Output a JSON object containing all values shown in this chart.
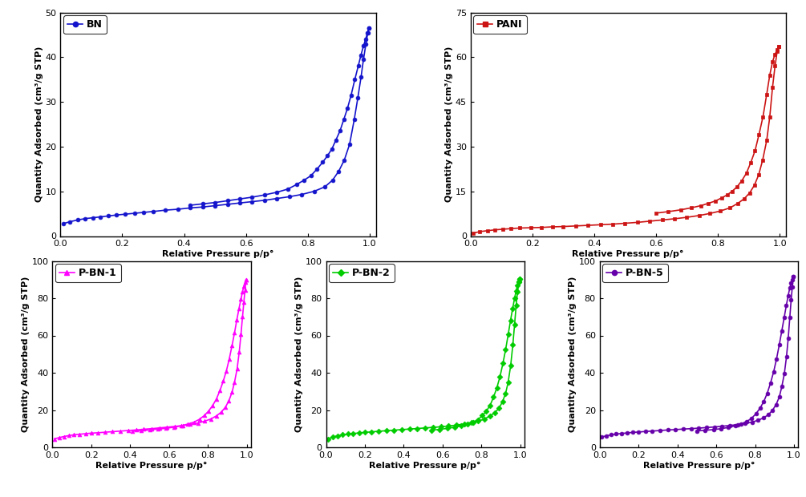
{
  "panels": [
    {
      "label": "BN",
      "color": "#1414CC",
      "marker": "o",
      "ylim": [
        0,
        50
      ],
      "yticks": [
        0,
        10,
        20,
        30,
        40,
        50
      ],
      "xlim": [
        0.0,
        1.02
      ],
      "xticks": [
        0.0,
        0.2,
        0.4,
        0.6,
        0.8,
        1.0
      ],
      "ylabel": "Quantity Adsorbed (cm³/g STP)",
      "xlabel": "Relative Pressure p/p°",
      "adsorption_x": [
        0.01,
        0.03,
        0.055,
        0.08,
        0.105,
        0.13,
        0.155,
        0.18,
        0.21,
        0.24,
        0.27,
        0.3,
        0.34,
        0.38,
        0.42,
        0.46,
        0.5,
        0.54,
        0.58,
        0.62,
        0.66,
        0.7,
        0.74,
        0.78,
        0.82,
        0.855,
        0.88,
        0.9,
        0.918,
        0.935,
        0.95,
        0.962,
        0.972,
        0.98,
        0.988,
        0.994,
        0.998
      ],
      "adsorption_y": [
        2.8,
        3.2,
        3.6,
        3.9,
        4.1,
        4.3,
        4.5,
        4.7,
        4.9,
        5.1,
        5.3,
        5.5,
        5.8,
        6.0,
        6.3,
        6.5,
        6.8,
        7.1,
        7.4,
        7.7,
        8.0,
        8.4,
        8.8,
        9.3,
        10.0,
        11.0,
        12.5,
        14.5,
        17.0,
        20.5,
        26.0,
        31.0,
        35.5,
        39.5,
        43.0,
        45.5,
        46.5
      ],
      "desorption_x": [
        0.998,
        0.993,
        0.987,
        0.98,
        0.972,
        0.963,
        0.952,
        0.94,
        0.928,
        0.916,
        0.904,
        0.891,
        0.878,
        0.864,
        0.848,
        0.83,
        0.81,
        0.788,
        0.763,
        0.735,
        0.7,
        0.66,
        0.62,
        0.58,
        0.54,
        0.5,
        0.46,
        0.42
      ],
      "desorption_y": [
        46.5,
        45.5,
        44.0,
        42.5,
        40.5,
        38.0,
        35.0,
        31.5,
        28.5,
        26.0,
        23.5,
        21.5,
        19.5,
        18.0,
        16.5,
        15.0,
        13.5,
        12.5,
        11.5,
        10.5,
        9.8,
        9.2,
        8.7,
        8.3,
        7.9,
        7.5,
        7.2,
        6.9
      ]
    },
    {
      "label": "PANI",
      "color": "#CC1414",
      "marker": "s",
      "ylim": [
        0,
        75
      ],
      "yticks": [
        0,
        15,
        30,
        45,
        60,
        75
      ],
      "xlim": [
        0.0,
        1.02
      ],
      "xticks": [
        0.0,
        0.2,
        0.4,
        0.6,
        0.8,
        1.0
      ],
      "ylabel": "Quantity Adsorbed (cm³/g STP)",
      "xlabel": "Relative Pressure p/p°",
      "adsorption_x": [
        0.01,
        0.03,
        0.055,
        0.08,
        0.105,
        0.13,
        0.16,
        0.195,
        0.23,
        0.265,
        0.3,
        0.34,
        0.38,
        0.42,
        0.46,
        0.5,
        0.54,
        0.58,
        0.62,
        0.66,
        0.7,
        0.74,
        0.775,
        0.808,
        0.84,
        0.865,
        0.885,
        0.903,
        0.918,
        0.932,
        0.945,
        0.958,
        0.968,
        0.977,
        0.985,
        0.992,
        0.997
      ],
      "adsorption_y": [
        1.0,
        1.5,
        1.8,
        2.1,
        2.3,
        2.5,
        2.7,
        2.8,
        2.9,
        3.1,
        3.2,
        3.4,
        3.6,
        3.8,
        4.0,
        4.3,
        4.6,
        5.0,
        5.4,
        5.8,
        6.3,
        6.9,
        7.6,
        8.4,
        9.5,
        11.0,
        12.5,
        14.5,
        17.0,
        20.5,
        25.5,
        32.0,
        40.0,
        50.0,
        57.0,
        62.0,
        63.5
      ],
      "desorption_x": [
        0.997,
        0.992,
        0.985,
        0.977,
        0.968,
        0.958,
        0.946,
        0.933,
        0.92,
        0.906,
        0.892,
        0.877,
        0.862,
        0.846,
        0.83,
        0.812,
        0.793,
        0.77,
        0.745,
        0.715,
        0.68,
        0.64,
        0.6
      ],
      "desorption_y": [
        63.5,
        62.5,
        61.0,
        58.5,
        54.0,
        47.5,
        40.0,
        34.0,
        28.5,
        24.5,
        21.0,
        18.5,
        16.5,
        15.0,
        13.8,
        12.8,
        11.8,
        11.0,
        10.2,
        9.5,
        8.8,
        8.2,
        7.7
      ]
    },
    {
      "label": "P-BN-1",
      "color": "#FF00FF",
      "marker": "^",
      "ylim": [
        0,
        100
      ],
      "yticks": [
        0,
        20,
        40,
        60,
        80,
        100
      ],
      "xlim": [
        0.0,
        1.02
      ],
      "xticks": [
        0.0,
        0.2,
        0.4,
        0.6,
        0.8,
        1.0
      ],
      "ylabel": "Quantity Adsorbed (cm³/g STP)",
      "xlabel": "Relative Pressure p/p°",
      "adsorption_x": [
        0.01,
        0.035,
        0.06,
        0.085,
        0.112,
        0.14,
        0.17,
        0.2,
        0.235,
        0.27,
        0.31,
        0.35,
        0.39,
        0.43,
        0.47,
        0.51,
        0.55,
        0.59,
        0.63,
        0.67,
        0.71,
        0.748,
        0.783,
        0.815,
        0.843,
        0.868,
        0.89,
        0.908,
        0.924,
        0.937,
        0.95,
        0.961,
        0.97,
        0.978,
        0.985,
        0.991,
        0.996
      ],
      "adsorption_y": [
        4.5,
        5.2,
        5.8,
        6.3,
        6.7,
        7.0,
        7.3,
        7.6,
        7.8,
        8.1,
        8.4,
        8.7,
        9.0,
        9.3,
        9.7,
        10.0,
        10.4,
        10.8,
        11.2,
        11.7,
        12.3,
        13.0,
        14.0,
        15.2,
        16.8,
        18.8,
        21.5,
        25.0,
        29.5,
        35.0,
        42.0,
        51.0,
        60.5,
        70.0,
        78.0,
        84.5,
        90.0
      ],
      "desorption_x": [
        0.996,
        0.991,
        0.985,
        0.978,
        0.97,
        0.96,
        0.949,
        0.937,
        0.924,
        0.91,
        0.895,
        0.879,
        0.862,
        0.844,
        0.825,
        0.804,
        0.781,
        0.756,
        0.728,
        0.697,
        0.663,
        0.625,
        0.585,
        0.543,
        0.5,
        0.455,
        0.41
      ],
      "desorption_y": [
        90.0,
        88.5,
        86.5,
        83.5,
        79.5,
        74.5,
        68.5,
        61.5,
        54.5,
        47.5,
        41.0,
        35.5,
        30.5,
        26.0,
        22.5,
        19.5,
        17.0,
        15.0,
        13.5,
        12.5,
        11.5,
        10.8,
        10.2,
        9.8,
        9.3,
        8.9,
        8.6
      ]
    },
    {
      "label": "P-BN-2",
      "color": "#00CC00",
      "marker": "D",
      "ylim": [
        0,
        100
      ],
      "yticks": [
        0,
        20,
        40,
        60,
        80,
        100
      ],
      "xlim": [
        0.0,
        1.02
      ],
      "xticks": [
        0.0,
        0.2,
        0.4,
        0.6,
        0.8,
        1.0
      ],
      "ylabel": "Quantity Adsorbed (cm³/g STP)",
      "xlabel": "Relative Pressure p/p°",
      "adsorption_x": [
        0.01,
        0.035,
        0.06,
        0.085,
        0.112,
        0.14,
        0.17,
        0.2,
        0.235,
        0.27,
        0.31,
        0.35,
        0.39,
        0.43,
        0.47,
        0.51,
        0.55,
        0.59,
        0.63,
        0.67,
        0.71,
        0.748,
        0.783,
        0.815,
        0.843,
        0.868,
        0.89,
        0.908,
        0.924,
        0.937,
        0.95,
        0.961,
        0.97,
        0.978,
        0.985,
        0.992,
        0.997
      ],
      "adsorption_y": [
        4.5,
        5.5,
        6.2,
        6.7,
        7.1,
        7.4,
        7.7,
        8.0,
        8.3,
        8.6,
        8.9,
        9.2,
        9.5,
        9.8,
        10.1,
        10.4,
        10.7,
        11.0,
        11.4,
        11.9,
        12.5,
        13.2,
        14.0,
        15.2,
        16.8,
        18.5,
        21.0,
        24.5,
        29.0,
        35.0,
        44.0,
        55.0,
        66.0,
        76.0,
        83.5,
        88.5,
        90.5
      ],
      "desorption_x": [
        0.997,
        0.992,
        0.985,
        0.978,
        0.97,
        0.96,
        0.949,
        0.937,
        0.924,
        0.91,
        0.895,
        0.879,
        0.862,
        0.844,
        0.825,
        0.804,
        0.781,
        0.756,
        0.728,
        0.697,
        0.663,
        0.625,
        0.585,
        0.543
      ],
      "desorption_y": [
        90.5,
        89.0,
        87.0,
        84.0,
        80.0,
        74.5,
        68.0,
        60.5,
        52.5,
        45.0,
        38.0,
        32.0,
        27.0,
        22.5,
        19.5,
        17.0,
        14.8,
        13.5,
        12.5,
        11.5,
        10.8,
        10.2,
        9.6,
        9.2
      ]
    },
    {
      "label": "P-BN-5",
      "color": "#6600AA",
      "marker": "o",
      "ylim": [
        0,
        100
      ],
      "yticks": [
        0,
        20,
        40,
        60,
        80,
        100
      ],
      "xlim": [
        0.0,
        1.02
      ],
      "xticks": [
        0.0,
        0.2,
        0.4,
        0.6,
        0.8,
        1.0
      ],
      "ylabel": "Quantity Adsorbed (cm³/g STP)",
      "xlabel": "Relative Pressure p/p°",
      "adsorption_x": [
        0.01,
        0.035,
        0.06,
        0.085,
        0.112,
        0.14,
        0.17,
        0.2,
        0.235,
        0.27,
        0.31,
        0.35,
        0.39,
        0.43,
        0.47,
        0.51,
        0.55,
        0.59,
        0.63,
        0.67,
        0.71,
        0.748,
        0.783,
        0.815,
        0.843,
        0.868,
        0.89,
        0.908,
        0.924,
        0.937,
        0.95,
        0.961,
        0.97,
        0.978,
        0.985,
        0.991,
        0.996
      ],
      "adsorption_y": [
        5.5,
        6.2,
        6.7,
        7.1,
        7.4,
        7.7,
        8.0,
        8.2,
        8.5,
        8.7,
        9.0,
        9.3,
        9.5,
        9.8,
        10.0,
        10.3,
        10.6,
        10.9,
        11.3,
        11.7,
        12.2,
        12.8,
        13.5,
        14.5,
        15.8,
        17.5,
        20.0,
        23.0,
        27.0,
        32.5,
        39.5,
        48.5,
        58.5,
        69.5,
        79.0,
        86.0,
        91.5
      ],
      "desorption_x": [
        0.996,
        0.991,
        0.985,
        0.978,
        0.97,
        0.96,
        0.949,
        0.937,
        0.924,
        0.91,
        0.895,
        0.879,
        0.862,
        0.844,
        0.825,
        0.804,
        0.781,
        0.756,
        0.728,
        0.697,
        0.663,
        0.625,
        0.585,
        0.543,
        0.5
      ],
      "desorption_y": [
        91.5,
        90.0,
        88.0,
        85.5,
        81.5,
        76.0,
        69.5,
        62.5,
        55.0,
        47.5,
        40.5,
        34.5,
        29.0,
        24.5,
        21.0,
        18.0,
        15.5,
        13.8,
        12.5,
        11.5,
        10.7,
        10.0,
        9.5,
        9.1,
        8.8
      ]
    }
  ],
  "background_color": "#ffffff",
  "tick_label_fontsize": 8,
  "axis_label_fontsize": 8,
  "legend_fontsize": 9,
  "linewidth": 1.2,
  "markersize": 3.5
}
